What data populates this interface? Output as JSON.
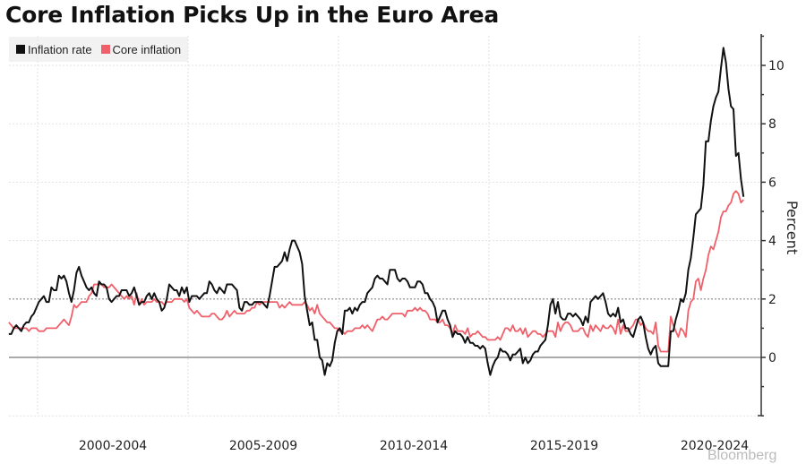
{
  "header": {
    "title": "Core Inflation Picks Up in the Euro Area"
  },
  "legend": [
    {
      "label": "Inflation rate",
      "color": "#111111"
    },
    {
      "label": "Core inflation",
      "color": "#f0606a"
    }
  ],
  "watermark": "Bloomberg",
  "chart_data": {
    "type": "line",
    "title": "Core Inflation Picks Up in the Euro Area",
    "xlabel": "",
    "ylabel": "Percent",
    "x_start": "1999-01",
    "x_end": "2023-06",
    "frequency": "monthly",
    "xlim": [
      1999.05,
      2024.05
    ],
    "ylim": [
      -2,
      11
    ],
    "y_ticks": [
      0,
      2,
      4,
      6,
      8,
      10
    ],
    "y_minor_ticks": [
      -1,
      1,
      3,
      5,
      7,
      9
    ],
    "x_tick_labels": [
      "2000-2004",
      "2005-2009",
      "2010-2014",
      "2015-2019",
      "2020-2024"
    ],
    "x_gridlines": [
      2000,
      2005,
      2010,
      2015,
      2020
    ],
    "reference_lines": [
      0,
      2
    ],
    "grid": true,
    "legend_position": "top-left",
    "series": [
      {
        "name": "Inflation rate",
        "color": "#111111",
        "values": [
          0.8,
          0.8,
          1.0,
          1.1,
          1.0,
          0.9,
          1.1,
          1.2,
          1.2,
          1.4,
          1.5,
          1.7,
          1.9,
          2.0,
          2.1,
          1.9,
          1.9,
          2.4,
          2.3,
          2.3,
          2.8,
          2.7,
          2.8,
          2.6,
          2.2,
          1.9,
          2.3,
          2.9,
          3.1,
          2.8,
          2.6,
          2.4,
          2.3,
          2.4,
          2.2,
          2.1,
          2.6,
          2.5,
          2.5,
          2.4,
          2.0,
          1.9,
          2.0,
          2.1,
          2.1,
          2.3,
          2.3,
          2.3,
          2.1,
          2.2,
          2.4,
          2.1,
          1.8,
          1.9,
          1.9,
          2.1,
          2.2,
          2.0,
          2.2,
          2.0,
          1.9,
          1.6,
          1.7,
          2.0,
          2.5,
          2.4,
          2.3,
          2.3,
          2.1,
          2.4,
          2.2,
          2.4,
          1.9,
          2.1,
          2.1,
          2.1,
          2.0,
          2.1,
          2.2,
          2.2,
          2.6,
          2.5,
          2.3,
          2.2,
          2.4,
          2.3,
          2.2,
          2.5,
          2.5,
          2.5,
          2.4,
          2.3,
          1.7,
          1.6,
          1.9,
          1.9,
          1.8,
          1.8,
          1.9,
          1.9,
          1.9,
          1.9,
          1.8,
          1.7,
          2.1,
          2.6,
          3.1,
          3.1,
          3.2,
          3.3,
          3.6,
          3.3,
          3.7,
          4.0,
          4.0,
          3.8,
          3.6,
          3.2,
          2.1,
          1.6,
          1.1,
          1.2,
          0.6,
          0.6,
          0.0,
          -0.1,
          -0.6,
          -0.2,
          -0.3,
          -0.1,
          0.5,
          0.9,
          1.0,
          0.8,
          1.6,
          1.6,
          1.7,
          1.5,
          1.7,
          1.6,
          1.8,
          1.9,
          1.9,
          2.2,
          2.3,
          2.4,
          2.7,
          2.8,
          2.7,
          2.7,
          2.6,
          2.5,
          3.0,
          3.0,
          3.0,
          2.7,
          2.6,
          2.7,
          2.7,
          2.6,
          2.4,
          2.4,
          2.4,
          2.6,
          2.6,
          2.5,
          2.2,
          2.2,
          2.0,
          1.9,
          1.7,
          1.2,
          1.4,
          1.6,
          1.6,
          1.3,
          1.1,
          0.7,
          0.9,
          0.8,
          0.8,
          0.7,
          0.5,
          0.7,
          0.5,
          0.5,
          0.4,
          0.4,
          0.3,
          0.4,
          0.3,
          -0.2,
          -0.6,
          -0.3,
          -0.1,
          0.0,
          0.3,
          0.2,
          0.2,
          0.1,
          -0.1,
          0.1,
          0.1,
          0.2,
          0.3,
          -0.2,
          0.0,
          -0.2,
          -0.1,
          0.1,
          0.2,
          0.2,
          0.4,
          0.5,
          0.6,
          1.1,
          1.8,
          2.0,
          1.5,
          1.9,
          1.4,
          1.3,
          1.3,
          1.5,
          1.5,
          1.4,
          1.5,
          1.4,
          1.3,
          1.1,
          1.4,
          1.2,
          1.9,
          2.0,
          2.1,
          2.0,
          2.1,
          2.2,
          1.9,
          1.5,
          1.4,
          1.5,
          1.4,
          1.7,
          1.2,
          1.3,
          1.0,
          1.0,
          0.8,
          0.7,
          1.0,
          1.3,
          1.4,
          1.2,
          0.7,
          0.3,
          0.1,
          0.3,
          0.4,
          -0.2,
          -0.3,
          -0.3,
          -0.3,
          -0.3,
          0.9,
          0.9,
          1.3,
          1.6,
          2.0,
          1.9,
          2.2,
          3.0,
          3.4,
          4.1,
          4.9,
          5.0,
          5.1,
          5.9,
          7.4,
          7.4,
          8.1,
          8.6,
          8.9,
          9.1,
          9.9,
          10.6,
          10.1,
          9.2,
          8.6,
          8.5,
          6.9,
          7.0,
          6.1,
          5.5
        ]
      },
      {
        "name": "Core inflation",
        "color": "#f0606a",
        "values": [
          1.2,
          1.1,
          1.0,
          1.0,
          1.0,
          1.0,
          1.0,
          1.0,
          0.9,
          1.0,
          1.0,
          1.0,
          0.9,
          0.9,
          0.9,
          1.0,
          1.0,
          1.0,
          1.0,
          1.0,
          1.1,
          1.2,
          1.3,
          1.2,
          1.1,
          1.4,
          1.8,
          1.7,
          1.8,
          1.9,
          1.9,
          1.9,
          2.1,
          2.2,
          2.5,
          2.5,
          2.5,
          2.5,
          2.4,
          2.4,
          2.4,
          2.5,
          2.4,
          2.3,
          2.2,
          2.1,
          2.0,
          2.1,
          2.0,
          2.1,
          1.8,
          2.2,
          1.8,
          2.0,
          1.8,
          1.9,
          1.9,
          1.9,
          2.0,
          1.9,
          1.9,
          1.9,
          1.8,
          1.9,
          1.9,
          1.9,
          2.0,
          2.0,
          2.0,
          2.0,
          1.9,
          2.0,
          1.7,
          1.6,
          1.5,
          1.6,
          1.5,
          1.4,
          1.4,
          1.4,
          1.4,
          1.5,
          1.5,
          1.4,
          1.3,
          1.3,
          1.4,
          1.6,
          1.4,
          1.5,
          1.6,
          1.5,
          1.5,
          1.5,
          1.5,
          1.6,
          1.6,
          1.7,
          1.7,
          1.9,
          1.8,
          1.9,
          1.9,
          1.9,
          1.9,
          1.9,
          1.9,
          1.9,
          1.7,
          1.8,
          1.7,
          1.8,
          1.9,
          1.8,
          1.8,
          1.8,
          1.8,
          1.8,
          1.9,
          1.8,
          1.6,
          1.7,
          1.5,
          1.8,
          1.5,
          1.4,
          1.3,
          1.2,
          1.2,
          1.1,
          1.0,
          1.0,
          0.9,
          0.9,
          0.8,
          0.9,
          0.9,
          0.9,
          1.0,
          1.0,
          1.0,
          1.1,
          1.0,
          1.1,
          1.0,
          0.9,
          1.1,
          1.3,
          1.3,
          1.4,
          1.3,
          1.3,
          1.4,
          1.5,
          1.5,
          1.5,
          1.5,
          1.5,
          1.4,
          1.6,
          1.6,
          1.6,
          1.7,
          1.6,
          1.7,
          1.6,
          1.6,
          1.5,
          1.3,
          1.3,
          1.3,
          1.2,
          1.2,
          1.3,
          1.1,
          1.1,
          1.0,
          0.8,
          1.1,
          0.9,
          0.9,
          0.9,
          0.8,
          1.0,
          0.7,
          0.8,
          0.8,
          0.9,
          0.8,
          0.7,
          0.7,
          0.6,
          0.6,
          0.6,
          0.6,
          0.7,
          0.6,
          0.8,
          1.0,
          1.0,
          0.9,
          1.1,
          0.9,
          0.9,
          1.0,
          0.8,
          1.0,
          0.7,
          0.8,
          0.9,
          0.9,
          0.8,
          0.8,
          0.7,
          0.8,
          0.9,
          0.9,
          0.9,
          0.7,
          1.2,
          0.9,
          1.1,
          1.2,
          1.2,
          1.1,
          0.9,
          0.9,
          0.9,
          1.0,
          1.0,
          0.8,
          0.7,
          1.1,
          0.9,
          1.1,
          1.0,
          0.9,
          1.1,
          1.0,
          1.0,
          1.1,
          1.0,
          0.8,
          1.3,
          0.8,
          1.1,
          0.9,
          0.9,
          1.0,
          1.1,
          1.3,
          1.3,
          1.1,
          1.2,
          1.0,
          0.9,
          0.9,
          0.8,
          1.2,
          0.4,
          0.2,
          0.2,
          0.2,
          0.2,
          1.4,
          1.1,
          0.9,
          0.7,
          1.0,
          0.9,
          0.7,
          1.6,
          1.9,
          2.0,
          2.6,
          2.7,
          2.3,
          2.7,
          3.0,
          3.5,
          3.8,
          3.7,
          4.0,
          4.3,
          4.8,
          5.0,
          5.0,
          5.2,
          5.3,
          5.6,
          5.7,
          5.6,
          5.3,
          5.4
        ]
      }
    ]
  }
}
